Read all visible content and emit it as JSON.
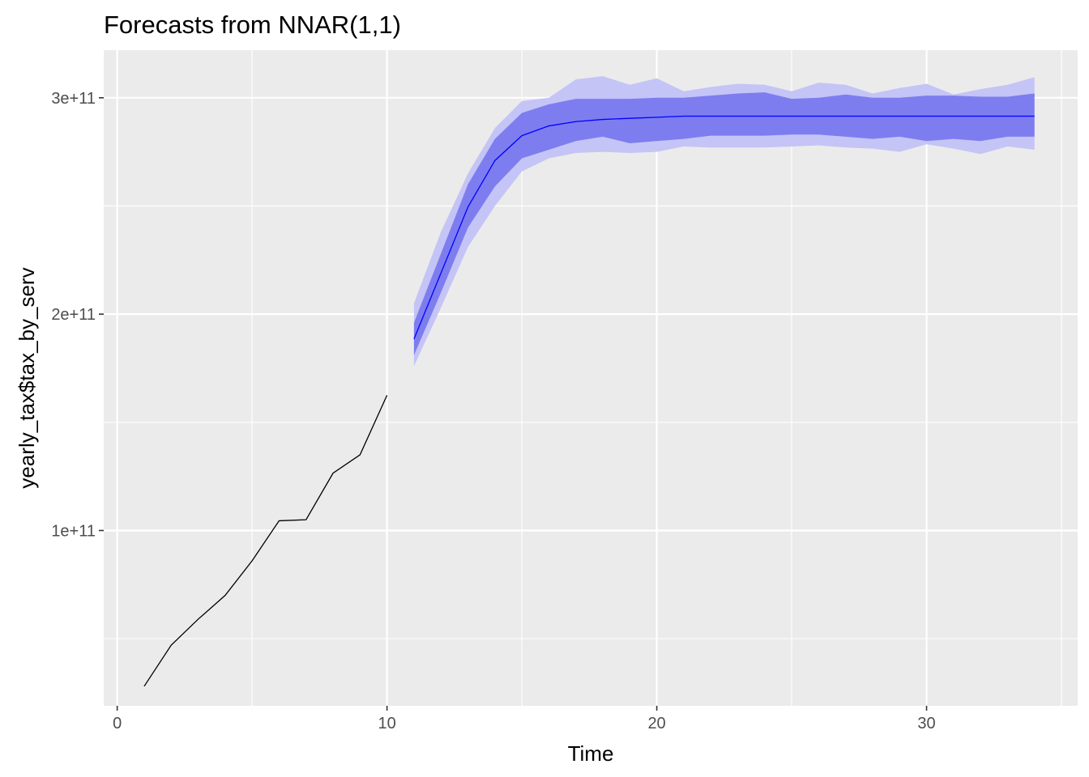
{
  "chart_data": {
    "type": "line",
    "title": "Forecasts from NNAR(1,1)",
    "xlabel": "Time",
    "ylabel": "yearly_tax$tax_by_serv",
    "xlim": [
      -0.5,
      35.6
    ],
    "ylim": [
      19000000000.0,
      322000000000.0
    ],
    "x_ticks": [
      0,
      10,
      20,
      30
    ],
    "x_tick_labels": [
      "0",
      "10",
      "20",
      "30"
    ],
    "x_minor_ticks": [
      5,
      15,
      25,
      35
    ],
    "y_ticks": [
      100000000000.0,
      200000000000.0,
      300000000000.0
    ],
    "y_tick_labels": [
      "1e+11",
      "2e+11",
      "3e+11"
    ],
    "y_minor_ticks": [
      50000000000.0,
      150000000000.0,
      250000000000.0
    ],
    "grid": true,
    "legend": "none",
    "colors": {
      "panel_bg": "#ebebeb",
      "grid": "#ffffff",
      "history_line": "#000000",
      "forecast_line": "#0000ff",
      "band_95": "#c4c4f6",
      "band_80": "#7d7df0",
      "tick_text": "#4d4d4d"
    },
    "history": {
      "x": [
        1,
        2,
        3,
        4,
        5,
        6,
        7,
        8,
        9,
        10
      ],
      "y": [
        28000000000.0,
        47000000000.0,
        59000000000.0,
        70000000000.0,
        86000000000.0,
        104500000000.0,
        105000000000.0,
        126500000000.0,
        135000000000.0,
        162500000000.0
      ]
    },
    "forecast": {
      "x": [
        11,
        12,
        13,
        14,
        15,
        16,
        17,
        18,
        19,
        20,
        21,
        22,
        23,
        24,
        25,
        26,
        27,
        28,
        29,
        30,
        31,
        32,
        33,
        34
      ],
      "mean": [
        188500000000.0,
        219000000000.0,
        249500000000.0,
        271000000000.0,
        282500000000.0,
        287000000000.0,
        289000000000.0,
        290000000000.0,
        290500000000.0,
        291000000000.0,
        291500000000.0,
        291500000000.0,
        291500000000.0,
        291500000000.0,
        291500000000.0,
        291500000000.0,
        291500000000.0,
        291500000000.0,
        291500000000.0,
        291500000000.0,
        291500000000.0,
        291500000000.0,
        291500000000.0,
        291500000000.0
      ],
      "lo80": [
        181000000000.0,
        210000000000.0,
        240000000000.0,
        259000000000.0,
        272000000000.0,
        276000000000.0,
        280000000000.0,
        282000000000.0,
        279000000000.0,
        280000000000.0,
        281000000000.0,
        282500000000.0,
        282500000000.0,
        282500000000.0,
        283000000000.0,
        283000000000.0,
        282000000000.0,
        281000000000.0,
        282000000000.0,
        280000000000.0,
        281000000000.0,
        280000000000.0,
        282000000000.0,
        282000000000.0
      ],
      "hi80": [
        196000000000.0,
        228000000000.0,
        260000000000.0,
        281000000000.0,
        293000000000.0,
        297000000000.0,
        299500000000.0,
        299500000000.0,
        299500000000.0,
        300000000000.0,
        300000000000.0,
        301000000000.0,
        302000000000.0,
        302500000000.0,
        299500000000.0,
        300000000000.0,
        301500000000.0,
        300000000000.0,
        300000000000.0,
        301000000000.0,
        301000000000.0,
        300500000000.0,
        300500000000.0,
        302000000000.0
      ],
      "lo95": [
        176000000000.0,
        203000000000.0,
        231000000000.0,
        250000000000.0,
        266000000000.0,
        272000000000.0,
        274500000000.0,
        275000000000.0,
        274500000000.0,
        275000000000.0,
        277500000000.0,
        277000000000.0,
        277000000000.0,
        277000000000.0,
        277500000000.0,
        278000000000.0,
        277000000000.0,
        276500000000.0,
        275000000000.0,
        278500000000.0,
        276500000000.0,
        274000000000.0,
        277500000000.0,
        276000000000.0
      ],
      "hi95": [
        205000000000.0,
        238000000000.0,
        265000000000.0,
        286000000000.0,
        298500000000.0,
        300000000000.0,
        308500000000.0,
        310000000000.0,
        306000000000.0,
        309000000000.0,
        303000000000.0,
        305000000000.0,
        306500000000.0,
        306000000000.0,
        303000000000.0,
        307000000000.0,
        306000000000.0,
        302000000000.0,
        304500000000.0,
        306500000000.0,
        301500000000.0,
        304000000000.0,
        306000000000.0,
        309500000000.0
      ]
    }
  }
}
